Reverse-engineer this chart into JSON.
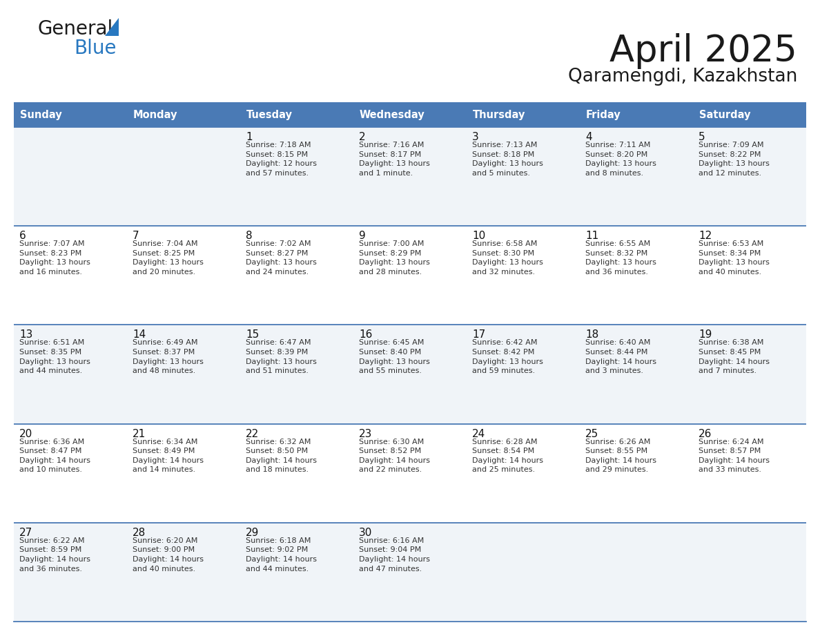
{
  "title": "April 2025",
  "subtitle": "Qaramengdi, Kazakhstan",
  "header_bg_color": "#4a7ab5",
  "header_text_color": "#ffffff",
  "day_names": [
    "Sunday",
    "Monday",
    "Tuesday",
    "Wednesday",
    "Thursday",
    "Friday",
    "Saturday"
  ],
  "odd_row_bg": "#f0f4f8",
  "even_row_bg": "#ffffff",
  "cell_text_color": "#333333",
  "day_num_color": "#111111",
  "divider_color": "#4a7ab5",
  "logo_black": "#1a1a1a",
  "logo_blue": "#2878c0",
  "calendar_data": [
    [
      {
        "day": "",
        "info": ""
      },
      {
        "day": "",
        "info": ""
      },
      {
        "day": "1",
        "info": "Sunrise: 7:18 AM\nSunset: 8:15 PM\nDaylight: 12 hours\nand 57 minutes."
      },
      {
        "day": "2",
        "info": "Sunrise: 7:16 AM\nSunset: 8:17 PM\nDaylight: 13 hours\nand 1 minute."
      },
      {
        "day": "3",
        "info": "Sunrise: 7:13 AM\nSunset: 8:18 PM\nDaylight: 13 hours\nand 5 minutes."
      },
      {
        "day": "4",
        "info": "Sunrise: 7:11 AM\nSunset: 8:20 PM\nDaylight: 13 hours\nand 8 minutes."
      },
      {
        "day": "5",
        "info": "Sunrise: 7:09 AM\nSunset: 8:22 PM\nDaylight: 13 hours\nand 12 minutes."
      }
    ],
    [
      {
        "day": "6",
        "info": "Sunrise: 7:07 AM\nSunset: 8:23 PM\nDaylight: 13 hours\nand 16 minutes."
      },
      {
        "day": "7",
        "info": "Sunrise: 7:04 AM\nSunset: 8:25 PM\nDaylight: 13 hours\nand 20 minutes."
      },
      {
        "day": "8",
        "info": "Sunrise: 7:02 AM\nSunset: 8:27 PM\nDaylight: 13 hours\nand 24 minutes."
      },
      {
        "day": "9",
        "info": "Sunrise: 7:00 AM\nSunset: 8:29 PM\nDaylight: 13 hours\nand 28 minutes."
      },
      {
        "day": "10",
        "info": "Sunrise: 6:58 AM\nSunset: 8:30 PM\nDaylight: 13 hours\nand 32 minutes."
      },
      {
        "day": "11",
        "info": "Sunrise: 6:55 AM\nSunset: 8:32 PM\nDaylight: 13 hours\nand 36 minutes."
      },
      {
        "day": "12",
        "info": "Sunrise: 6:53 AM\nSunset: 8:34 PM\nDaylight: 13 hours\nand 40 minutes."
      }
    ],
    [
      {
        "day": "13",
        "info": "Sunrise: 6:51 AM\nSunset: 8:35 PM\nDaylight: 13 hours\nand 44 minutes."
      },
      {
        "day": "14",
        "info": "Sunrise: 6:49 AM\nSunset: 8:37 PM\nDaylight: 13 hours\nand 48 minutes."
      },
      {
        "day": "15",
        "info": "Sunrise: 6:47 AM\nSunset: 8:39 PM\nDaylight: 13 hours\nand 51 minutes."
      },
      {
        "day": "16",
        "info": "Sunrise: 6:45 AM\nSunset: 8:40 PM\nDaylight: 13 hours\nand 55 minutes."
      },
      {
        "day": "17",
        "info": "Sunrise: 6:42 AM\nSunset: 8:42 PM\nDaylight: 13 hours\nand 59 minutes."
      },
      {
        "day": "18",
        "info": "Sunrise: 6:40 AM\nSunset: 8:44 PM\nDaylight: 14 hours\nand 3 minutes."
      },
      {
        "day": "19",
        "info": "Sunrise: 6:38 AM\nSunset: 8:45 PM\nDaylight: 14 hours\nand 7 minutes."
      }
    ],
    [
      {
        "day": "20",
        "info": "Sunrise: 6:36 AM\nSunset: 8:47 PM\nDaylight: 14 hours\nand 10 minutes."
      },
      {
        "day": "21",
        "info": "Sunrise: 6:34 AM\nSunset: 8:49 PM\nDaylight: 14 hours\nand 14 minutes."
      },
      {
        "day": "22",
        "info": "Sunrise: 6:32 AM\nSunset: 8:50 PM\nDaylight: 14 hours\nand 18 minutes."
      },
      {
        "day": "23",
        "info": "Sunrise: 6:30 AM\nSunset: 8:52 PM\nDaylight: 14 hours\nand 22 minutes."
      },
      {
        "day": "24",
        "info": "Sunrise: 6:28 AM\nSunset: 8:54 PM\nDaylight: 14 hours\nand 25 minutes."
      },
      {
        "day": "25",
        "info": "Sunrise: 6:26 AM\nSunset: 8:55 PM\nDaylight: 14 hours\nand 29 minutes."
      },
      {
        "day": "26",
        "info": "Sunrise: 6:24 AM\nSunset: 8:57 PM\nDaylight: 14 hours\nand 33 minutes."
      }
    ],
    [
      {
        "day": "27",
        "info": "Sunrise: 6:22 AM\nSunset: 8:59 PM\nDaylight: 14 hours\nand 36 minutes."
      },
      {
        "day": "28",
        "info": "Sunrise: 6:20 AM\nSunset: 9:00 PM\nDaylight: 14 hours\nand 40 minutes."
      },
      {
        "day": "29",
        "info": "Sunrise: 6:18 AM\nSunset: 9:02 PM\nDaylight: 14 hours\nand 44 minutes."
      },
      {
        "day": "30",
        "info": "Sunrise: 6:16 AM\nSunset: 9:04 PM\nDaylight: 14 hours\nand 47 minutes."
      },
      {
        "day": "",
        "info": ""
      },
      {
        "day": "",
        "info": ""
      },
      {
        "day": "",
        "info": ""
      }
    ]
  ]
}
